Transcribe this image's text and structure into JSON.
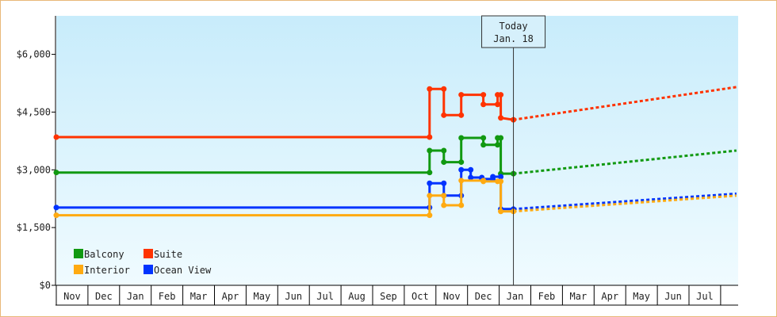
{
  "chart_data": {
    "type": "line",
    "ylim": [
      0,
      7000
    ],
    "y_ticks": [
      {
        "value": 0,
        "label": "$0"
      },
      {
        "value": 1500,
        "label": "$1,500"
      },
      {
        "value": 3000,
        "label": "$3,000"
      },
      {
        "value": 4500,
        "label": "$4,500"
      },
      {
        "value": 6000,
        "label": "$6,000"
      }
    ],
    "x_months": [
      "Nov",
      "Dec",
      "Jan",
      "Feb",
      "Mar",
      "Apr",
      "May",
      "Jun",
      "Jul",
      "Aug",
      "Sep",
      "Oct",
      "Nov",
      "Dec",
      "Jan",
      "Feb",
      "Mar",
      "Apr",
      "May",
      "Jun",
      "Jul"
    ],
    "today_index": 14.45,
    "today_label": "Today",
    "today_date": "Jan. 18",
    "grid": false,
    "background": [
      "#c8ecfb",
      "#f0fbff"
    ],
    "legend_position": "bottom-left",
    "series": [
      {
        "name": "Suite",
        "color": "#ff3300",
        "points": [
          [
            0,
            3850
          ],
          [
            11.8,
            3850
          ],
          [
            11.8,
            5100
          ],
          [
            12.25,
            5100
          ],
          [
            12.25,
            4420
          ],
          [
            12.8,
            4420
          ],
          [
            12.8,
            4950
          ],
          [
            13.5,
            4950
          ],
          [
            13.5,
            4700
          ],
          [
            13.95,
            4700
          ],
          [
            13.95,
            4950
          ],
          [
            14.05,
            4950
          ],
          [
            14.05,
            4350
          ],
          [
            14.45,
            4300
          ]
        ],
        "forecast": [
          [
            14.45,
            4300
          ],
          [
            21.5,
            5150
          ]
        ]
      },
      {
        "name": "Balcony",
        "color": "#119911",
        "points": [
          [
            0,
            2930
          ],
          [
            11.8,
            2930
          ],
          [
            11.8,
            3500
          ],
          [
            12.25,
            3500
          ],
          [
            12.25,
            3200
          ],
          [
            12.8,
            3200
          ],
          [
            12.8,
            3830
          ],
          [
            13.5,
            3830
          ],
          [
            13.5,
            3650
          ],
          [
            13.95,
            3650
          ],
          [
            13.95,
            3830
          ],
          [
            14.05,
            3830
          ],
          [
            14.05,
            2900
          ],
          [
            14.45,
            2900
          ]
        ],
        "forecast": [
          [
            14.45,
            2900
          ],
          [
            21.5,
            3500
          ]
        ]
      },
      {
        "name": "Ocean View",
        "color": "#0033ff",
        "points": [
          [
            0,
            2020
          ],
          [
            11.8,
            2020
          ],
          [
            11.8,
            2650
          ],
          [
            12.25,
            2650
          ],
          [
            12.25,
            2330
          ],
          [
            12.8,
            2330
          ],
          [
            12.8,
            3000
          ],
          [
            13.1,
            3000
          ],
          [
            13.1,
            2800
          ],
          [
            13.45,
            2800
          ],
          [
            13.45,
            2760
          ],
          [
            13.8,
            2760
          ],
          [
            13.8,
            2820
          ],
          [
            14.05,
            2820
          ],
          [
            14.05,
            1980
          ],
          [
            14.45,
            1980
          ]
        ],
        "forecast": [
          [
            14.45,
            1980
          ],
          [
            21.5,
            2380
          ]
        ]
      },
      {
        "name": "Interior",
        "color": "#ffaa11",
        "points": [
          [
            0,
            1820
          ],
          [
            11.8,
            1820
          ],
          [
            11.8,
            2330
          ],
          [
            12.25,
            2330
          ],
          [
            12.25,
            2080
          ],
          [
            12.8,
            2080
          ],
          [
            12.8,
            2720
          ],
          [
            13.5,
            2720
          ],
          [
            13.5,
            2700
          ],
          [
            13.95,
            2700
          ],
          [
            14.05,
            2700
          ],
          [
            14.05,
            1920
          ],
          [
            14.45,
            1920
          ]
        ],
        "forecast": [
          [
            14.45,
            1920
          ],
          [
            21.5,
            2330
          ]
        ]
      }
    ],
    "legend": [
      {
        "name": "Balcony",
        "color": "#119911"
      },
      {
        "name": "Suite",
        "color": "#ff3300"
      },
      {
        "name": "Interior",
        "color": "#ffaa11"
      },
      {
        "name": "Ocean View",
        "color": "#0033ff"
      }
    ]
  }
}
